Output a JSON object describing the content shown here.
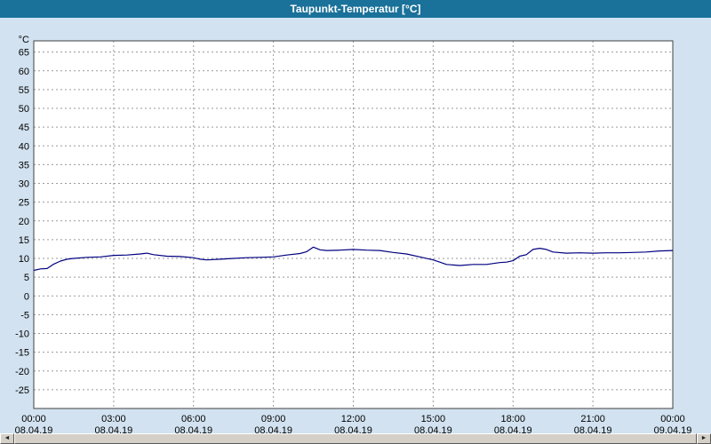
{
  "title_bar": {
    "title": "Taupunkt-Temperatur [°C]",
    "bg_color": "#1a7199",
    "fg_color": "#ffffff"
  },
  "scrollbar": {
    "left_arrow": "◄",
    "right_arrow": "►"
  },
  "chart_data": {
    "type": "line",
    "title": "Taupunkt-Temperatur [°C]",
    "xlabel": "",
    "ylabel": "°C",
    "xlim": [
      0,
      24
    ],
    "ylim": [
      -30,
      68
    ],
    "y_tick_min": -25,
    "y_tick_max": 65,
    "y_tick_step": 5,
    "grid": true,
    "grid_color": "#9a9a9a",
    "border_color": "#404040",
    "plot_bg": "#ffffff",
    "x_ticks": [
      {
        "hour": 0,
        "time": "00:00",
        "date": "08.04.19"
      },
      {
        "hour": 3,
        "time": "03:00",
        "date": "08.04.19"
      },
      {
        "hour": 6,
        "time": "06:00",
        "date": "08.04.19"
      },
      {
        "hour": 9,
        "time": "09:00",
        "date": "08.04.19"
      },
      {
        "hour": 12,
        "time": "12:00",
        "date": "08.04.19"
      },
      {
        "hour": 15,
        "time": "15:00",
        "date": "08.04.19"
      },
      {
        "hour": 18,
        "time": "18:00",
        "date": "08.04.19"
      },
      {
        "hour": 21,
        "time": "21:00",
        "date": "08.04.19"
      },
      {
        "hour": 24,
        "time": "00:00",
        "date": "09.04.19"
      }
    ],
    "series": [
      {
        "name": "Taupunkt-Temperatur",
        "color": "#000080",
        "points": [
          [
            0,
            6.8
          ],
          [
            0.25,
            7.2
          ],
          [
            0.5,
            7.3
          ],
          [
            0.75,
            8.5
          ],
          [
            1,
            9.3
          ],
          [
            1.25,
            9.8
          ],
          [
            1.5,
            10.0
          ],
          [
            2,
            10.3
          ],
          [
            2.5,
            10.4
          ],
          [
            3,
            10.8
          ],
          [
            3.5,
            10.9
          ],
          [
            4,
            11.2
          ],
          [
            4.25,
            11.4
          ],
          [
            4.5,
            11.0
          ],
          [
            5,
            10.6
          ],
          [
            5.5,
            10.5
          ],
          [
            6,
            10.2
          ],
          [
            6.25,
            9.8
          ],
          [
            6.5,
            9.6
          ],
          [
            7,
            9.8
          ],
          [
            7.5,
            10.0
          ],
          [
            8,
            10.2
          ],
          [
            8.5,
            10.3
          ],
          [
            9,
            10.4
          ],
          [
            9.5,
            10.9
          ],
          [
            10,
            11.3
          ],
          [
            10.25,
            11.8
          ],
          [
            10.5,
            13.0
          ],
          [
            10.75,
            12.3
          ],
          [
            11,
            12.1
          ],
          [
            11.5,
            12.2
          ],
          [
            12,
            12.4
          ],
          [
            12.5,
            12.2
          ],
          [
            13,
            12.1
          ],
          [
            13.5,
            11.6
          ],
          [
            14,
            11.2
          ],
          [
            14.5,
            10.4
          ],
          [
            15,
            9.6
          ],
          [
            15.25,
            9.0
          ],
          [
            15.5,
            8.4
          ],
          [
            16,
            8.1
          ],
          [
            16.5,
            8.4
          ],
          [
            17,
            8.4
          ],
          [
            17.5,
            8.9
          ],
          [
            17.75,
            9.0
          ],
          [
            18,
            9.4
          ],
          [
            18.25,
            10.6
          ],
          [
            18.5,
            11.0
          ],
          [
            18.75,
            12.4
          ],
          [
            19,
            12.7
          ],
          [
            19.25,
            12.4
          ],
          [
            19.5,
            11.7
          ],
          [
            20,
            11.4
          ],
          [
            20.5,
            11.5
          ],
          [
            21,
            11.4
          ],
          [
            21.5,
            11.5
          ],
          [
            22,
            11.5
          ],
          [
            22.5,
            11.6
          ],
          [
            23,
            11.7
          ],
          [
            23.5,
            12.0
          ],
          [
            24,
            12.1
          ]
        ]
      }
    ]
  }
}
